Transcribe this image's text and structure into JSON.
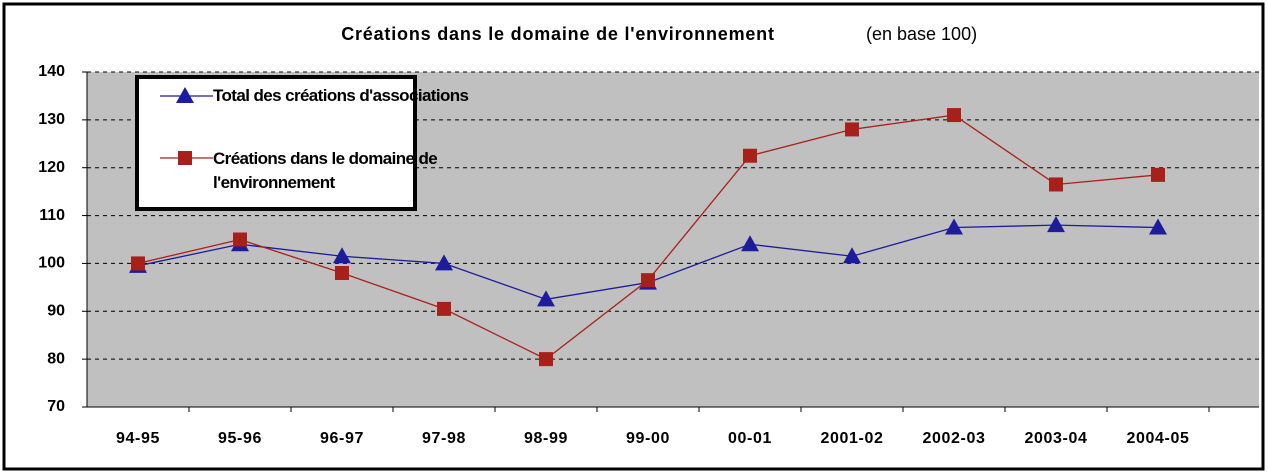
{
  "chart_data": {
    "type": "line",
    "title": "Créations dans le domaine de l'environnement",
    "subtitle": "(en base 100)",
    "categories": [
      "94-95",
      "95-96",
      "96-97",
      "97-98",
      "98-99",
      "99-00",
      "00-01",
      "2001-02",
      "2002-03",
      "2003-04",
      "2004-05"
    ],
    "series": [
      {
        "name": "Total des créations d'associations",
        "color": "#1c1c9c",
        "marker": "triangle",
        "values": [
          99.5,
          104,
          101.5,
          100,
          92.5,
          96,
          104,
          101.5,
          107.5,
          108,
          107.5
        ]
      },
      {
        "name": "Créations dans le domaine de l'environnement",
        "color": "#a8201a",
        "marker": "square",
        "values": [
          100,
          105,
          98,
          90.5,
          80,
          96.5,
          122.5,
          128,
          131,
          116.5,
          118.5
        ]
      }
    ],
    "ylim": [
      70,
      140
    ],
    "yticks": [
      70,
      80,
      90,
      100,
      110,
      120,
      130,
      140
    ],
    "grid": true,
    "legend": "upper left"
  }
}
